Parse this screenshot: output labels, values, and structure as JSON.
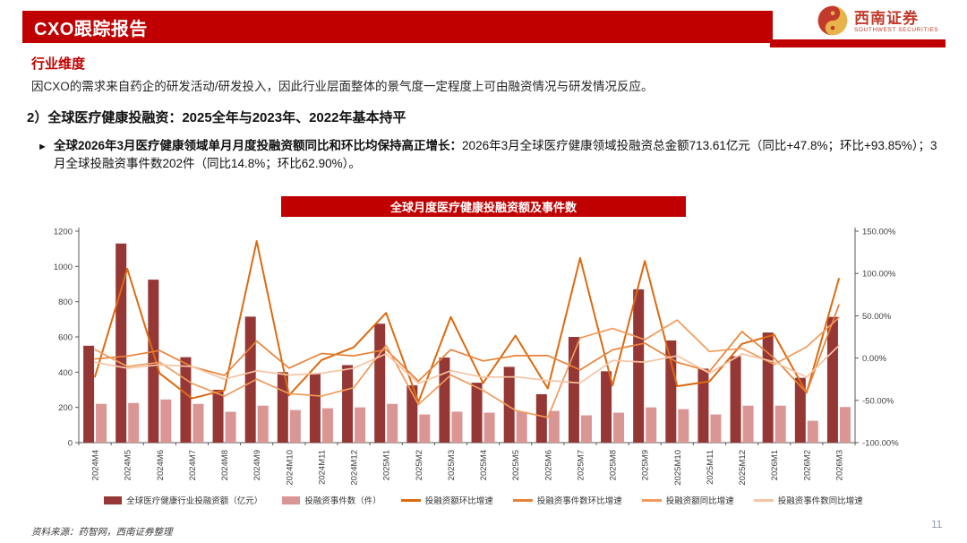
{
  "header": {
    "title": "CXO跟踪报告",
    "logo_cn": "西南证券",
    "logo_en": "SOUTHWEST SECURITIES",
    "logo_icon": "swirl-logo-icon",
    "accent_color": "#C00000"
  },
  "section": {
    "heading": "行业维度",
    "paragraph": "因CXO的需求来自药企的研发活动/研发投入，因此行业层面整体的景气度一定程度上可由融资情况与研发情况反应。",
    "subheading": "2）全球医疗健康投融资：2025全年与2023年、2022年基本持平",
    "bullet_marker": "►",
    "bullet_bold": "全球2026年3月医疗健康领域单月月度投融资额同比和环比均保持高正增长：",
    "bullet_rest": "2026年3月全球医疗健康领域投融资总金额713.61亿元（同比+47.8%；环比+93.85%）；3月全球投融资事件数202件（同比14.8%；环比62.90%）。"
  },
  "chart_data": {
    "type": "bar+line",
    "title": "全球月度医疗健康投融资额及事件数",
    "categories": [
      "2024M4",
      "2024M5",
      "2024M6",
      "2024M7",
      "2024M8",
      "2024M9",
      "2024M10",
      "2024M11",
      "2024M12",
      "2025M1",
      "2025M2",
      "2025M3",
      "2025M4",
      "2025M5",
      "2025M6",
      "2025M7",
      "2025M8",
      "2025M9",
      "2025M10",
      "2025M11",
      "2025M12",
      "2026M1",
      "2026M2",
      "2026M3"
    ],
    "bar_series": [
      {
        "name": "全球医疗健康行业投融资额（亿元）",
        "color": "#953735",
        "axis": "left",
        "values": [
          550,
          1130,
          925,
          485,
          300,
          715,
          400,
          390,
          440,
          675,
          325,
          483,
          340,
          430,
          275,
          600,
          405,
          870,
          580,
          420,
          490,
          625,
          368,
          713.61
        ]
      },
      {
        "name": "投融资事件数（件）",
        "color": "#D99694",
        "axis": "left",
        "values": [
          220,
          225,
          245,
          220,
          175,
          210,
          185,
          195,
          200,
          220,
          160,
          176,
          170,
          175,
          180,
          155,
          170,
          200,
          190,
          160,
          210,
          210,
          124,
          202
        ]
      }
    ],
    "line_series": [
      {
        "name": "投融资额环比增速",
        "color": "#DC6A11",
        "axis": "right",
        "values": [
          -22,
          105.5,
          -18.1,
          -47.6,
          -38.1,
          138.3,
          -44.1,
          -2.5,
          12.8,
          53.4,
          -51.9,
          48.6,
          -29.6,
          26.5,
          -36.0,
          118.2,
          -32.5,
          114.8,
          -33.3,
          -27.6,
          16.7,
          27.6,
          -41.1,
          93.85
        ]
      },
      {
        "name": "投融资事件数环比增速",
        "color": "#E8823A",
        "axis": "right",
        "values": [
          -1,
          2.3,
          8.9,
          -10.2,
          -20.5,
          20.0,
          -11.9,
          5.4,
          2.6,
          10.0,
          -27.3,
          10.0,
          -3.4,
          2.9,
          2.9,
          -13.9,
          9.7,
          17.6,
          -5.0,
          -15.8,
          31.3,
          0.0,
          -41.0,
          62.9
        ]
      },
      {
        "name": "投融资额同比增速",
        "color": "#F09A5A",
        "axis": "right",
        "values": [
          10,
          -10,
          -5,
          -30,
          -45,
          -25,
          -42,
          -45,
          -35,
          15,
          -55,
          -20,
          -38.2,
          -61.9,
          -70.3,
          23.7,
          35.0,
          21.7,
          45.0,
          7.7,
          11.4,
          -7.4,
          13.2,
          47.8
        ]
      },
      {
        "name": "投融资事件数同比增速",
        "color": "#F6C4A4",
        "axis": "right",
        "values": [
          -5,
          -12,
          -8,
          -10,
          -25,
          -15,
          -20,
          -18,
          -12,
          5,
          -30,
          -15,
          -22.7,
          -22.2,
          -26.5,
          -29.5,
          -2.9,
          -4.8,
          2.7,
          -17.9,
          5.0,
          -4.5,
          -22.5,
          14.8
        ]
      }
    ],
    "left_axis": {
      "min": 0,
      "max": 1200,
      "step": 200,
      "ticks": [
        "0",
        "200",
        "400",
        "600",
        "800",
        "1000",
        "1200"
      ]
    },
    "right_axis": {
      "min": -100,
      "max": 150,
      "step": 50,
      "ticks": [
        "150.00%",
        "100.00%",
        "50.00%",
        "0.00%",
        "-50.00%",
        "-100.00%"
      ]
    },
    "grid": "off",
    "legend_position": "bottom"
  },
  "footer": {
    "source": "资料来源：药智网，西南证券整理",
    "page": "11"
  }
}
